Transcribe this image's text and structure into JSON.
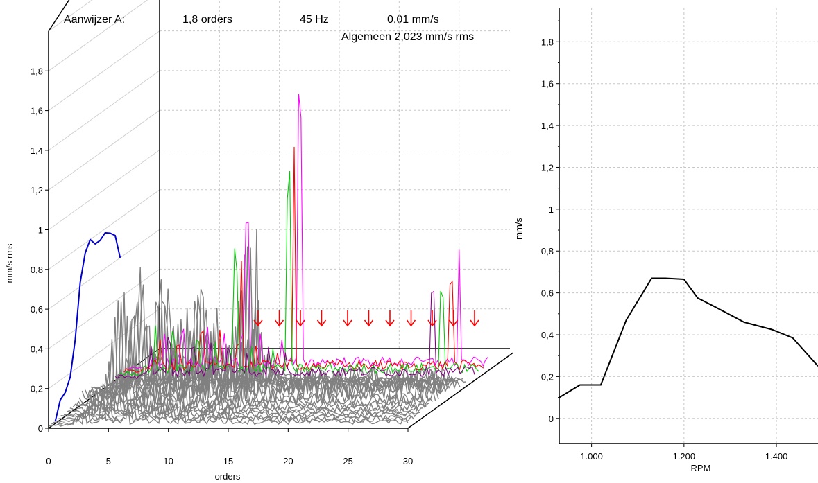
{
  "header": {
    "cursor_label": "Aanwijzer A:",
    "orders": "1,8 orders",
    "frequency": "45 Hz",
    "amplitude": "0,01 mm/s",
    "overall": "Algemeen 2,023 mm/s rms"
  },
  "chart_data": [
    {
      "type": "line",
      "subtype": "waterfall-3d",
      "title": "",
      "xlabel": "orders",
      "ylabel": "mm/s rms",
      "xlim": [
        0,
        30
      ],
      "ylim": [
        0,
        2
      ],
      "x_ticks": [
        "0",
        "5",
        "10",
        "15",
        "20",
        "25",
        "30"
      ],
      "y_ticks": [
        "0",
        "0,2",
        "0,4",
        "0,6",
        "0,8",
        "1",
        "1,2",
        "1,4",
        "1,6",
        "1,8"
      ],
      "grid": true,
      "spectra_count": 20,
      "marker_count": 11,
      "highlighted_spectra": [
        {
          "color": "#ff00ff",
          "peaks": [
            {
              "order": 9.9,
              "amp": 0.7
            },
            {
              "order": 14.3,
              "amp": 1.25
            },
            {
              "order": 27.6,
              "amp": 0.58
            }
          ]
        },
        {
          "color": "#ff0000",
          "peaks": [
            {
              "order": 9.8,
              "amp": 0.52
            },
            {
              "order": 14.2,
              "amp": 0.98
            },
            {
              "order": 27.3,
              "amp": 0.42
            }
          ]
        },
        {
          "color": "#00cc00",
          "peaks": [
            {
              "order": 9.7,
              "amp": 0.5
            },
            {
              "order": 14.1,
              "amp": 0.85
            },
            {
              "order": 26.9,
              "amp": 0.38
            }
          ]
        },
        {
          "color": "#800080",
          "peaks": [
            {
              "order": 26.5,
              "amp": 0.42
            }
          ]
        }
      ],
      "overall_trace": {
        "color": "#0000cc",
        "values": [
          0.01,
          0.1,
          0.12,
          0.18,
          0.35,
          0.62,
          0.75,
          0.8,
          0.76,
          0.76,
          0.78,
          0.76,
          0.73,
          0.6
        ]
      },
      "colors": {
        "spectra": "#808080",
        "highlight_1": "#ff00ff",
        "highlight_2": "#ff0000",
        "highlight_3": "#00cc00",
        "highlight_4": "#800080",
        "overall": "#0000cc",
        "markers": "#ff0000"
      }
    },
    {
      "type": "line",
      "title": "",
      "xlabel": "RPM",
      "ylabel": "mm/s",
      "xlim": [
        930,
        1490
      ],
      "ylim": [
        -0.12,
        1.96
      ],
      "x_ticks": [
        "1.000",
        "1.200",
        "1.400"
      ],
      "y_ticks": [
        "0",
        "0,2",
        "0,4",
        "0,6",
        "0,8",
        "1",
        "1,2",
        "1,4",
        "1,6",
        "1,8"
      ],
      "grid": true,
      "series": [
        {
          "color": "#000000",
          "x": [
            930,
            975,
            1020,
            1075,
            1130,
            1160,
            1200,
            1230,
            1270,
            1330,
            1390,
            1435,
            1490
          ],
          "y": [
            0.1,
            0.16,
            0.16,
            0.47,
            0.67,
            0.67,
            0.665,
            0.575,
            0.53,
            0.46,
            0.425,
            0.385,
            0.25
          ]
        }
      ]
    }
  ]
}
